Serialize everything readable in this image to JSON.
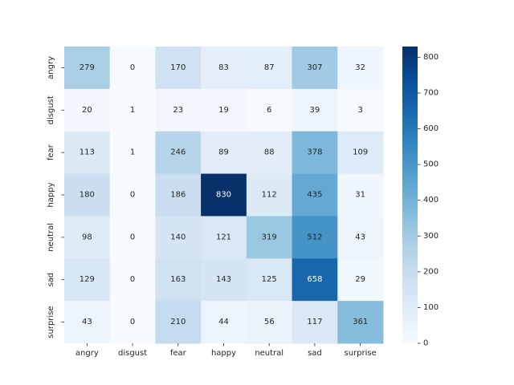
{
  "chart_data": {
    "type": "heatmap",
    "title": "",
    "xlabel": "",
    "ylabel": "",
    "x_categories": [
      "angry",
      "disgust",
      "fear",
      "happy",
      "neutral",
      "sad",
      "surprise"
    ],
    "y_categories": [
      "angry",
      "disgust",
      "fear",
      "happy",
      "neutral",
      "sad",
      "surprise"
    ],
    "values": [
      [
        279,
        0,
        170,
        83,
        87,
        307,
        32
      ],
      [
        20,
        1,
        23,
        19,
        6,
        39,
        3
      ],
      [
        113,
        1,
        246,
        89,
        88,
        378,
        109
      ],
      [
        180,
        0,
        186,
        830,
        112,
        435,
        31
      ],
      [
        98,
        0,
        140,
        121,
        319,
        512,
        43
      ],
      [
        129,
        0,
        163,
        143,
        125,
        658,
        29
      ],
      [
        43,
        0,
        210,
        44,
        56,
        117,
        361
      ]
    ],
    "colormap": "Blues",
    "colorbar": {
      "min": 0,
      "max": 830,
      "ticks": [
        0,
        100,
        200,
        300,
        400,
        500,
        600,
        700,
        800
      ]
    },
    "grid": false
  }
}
